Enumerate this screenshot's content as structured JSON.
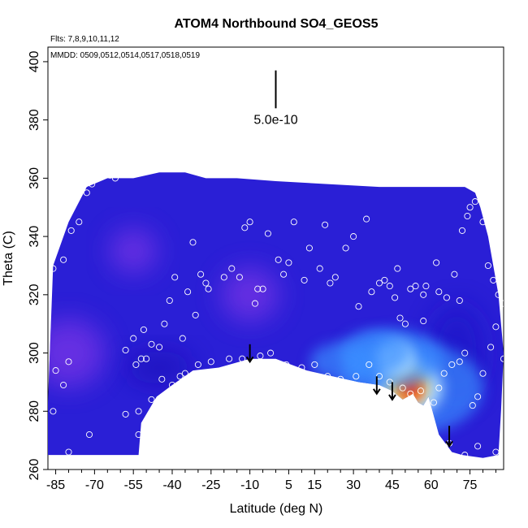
{
  "chart_data": {
    "type": "heatmap",
    "title": "ATOM4 Northbound SO4_GEOS5",
    "xlabel": "Latitude (deg N)",
    "ylabel": "Theta (C)",
    "annotations": {
      "flights": "Flts: 7,8,9,10,11,12",
      "dates": "MMDD: 0509,0512,0514,0517,0518,0519",
      "scale_bar": "5.0e-10"
    },
    "xlim": [
      -88,
      88
    ],
    "ylim": [
      260,
      405
    ],
    "x_ticks": [
      -85,
      -70,
      -55,
      -40,
      -25,
      -10,
      5,
      15,
      30,
      45,
      60,
      75
    ],
    "x_tick_labels": [
      "-85",
      "-70",
      "-55",
      "-40",
      "-25",
      "-10",
      "5",
      "15",
      "30",
      "45",
      "60",
      "75"
    ],
    "y_ticks": [
      260,
      280,
      300,
      320,
      340,
      360,
      380,
      400
    ],
    "y_tick_labels": [
      "260",
      "280",
      "300",
      "320",
      "340",
      "360",
      "380",
      "400"
    ],
    "colors": {
      "background_field": "#2a1fd6",
      "high_value": "#e8160c",
      "mid_value": "#ffd24a",
      "low_value": "#3a8dff",
      "purple_region": "#7a36e6",
      "markers": "#ffffff",
      "arrows": "#000000"
    },
    "field_outline": [
      [
        -88,
        283
      ],
      [
        -86,
        330
      ],
      [
        -80,
        345
      ],
      [
        -73,
        357
      ],
      [
        -65,
        360
      ],
      [
        -55,
        360
      ],
      [
        -45,
        362
      ],
      [
        -35,
        362
      ],
      [
        -27,
        360
      ],
      [
        -15,
        360
      ],
      [
        0,
        359
      ],
      [
        20,
        358
      ],
      [
        40,
        357
      ],
      [
        55,
        357
      ],
      [
        65,
        357
      ],
      [
        73,
        357
      ],
      [
        77,
        355
      ],
      [
        79,
        350
      ],
      [
        82,
        340
      ],
      [
        86,
        320
      ],
      [
        88,
        300
      ],
      [
        87,
        280
      ],
      [
        86,
        265
      ],
      [
        80,
        264
      ],
      [
        72,
        265
      ],
      [
        68,
        266
      ],
      [
        63,
        272
      ],
      [
        59,
        285
      ],
      [
        57,
        282
      ],
      [
        55,
        283
      ],
      [
        53,
        286
      ],
      [
        49,
        284
      ],
      [
        45,
        287
      ],
      [
        40,
        289
      ],
      [
        32,
        290
      ],
      [
        22,
        292
      ],
      [
        12,
        294
      ],
      [
        0,
        298
      ],
      [
        -10,
        298
      ],
      [
        -22,
        295
      ],
      [
        -32,
        294
      ],
      [
        -40,
        289
      ],
      [
        -46,
        285
      ],
      [
        -52,
        276
      ],
      [
        -53,
        265
      ],
      [
        -60,
        265
      ],
      [
        -70,
        265
      ],
      [
        -88,
        265
      ]
    ],
    "hotspots": [
      {
        "lat": 52,
        "theta": 288,
        "strength": 1.0
      },
      {
        "lat": 46,
        "theta": 298,
        "strength": 0.55
      },
      {
        "lat": 38,
        "theta": 300,
        "strength": 0.35
      },
      {
        "lat": 25,
        "theta": 297,
        "strength": 0.25
      }
    ],
    "purple_zones": [
      {
        "lat": -80,
        "theta": 300,
        "r": 28
      },
      {
        "lat": -10,
        "theta": 320,
        "r": 22
      },
      {
        "lat": -55,
        "theta": 335,
        "r": 18
      }
    ],
    "observation_points": [
      [
        -85,
        294
      ],
      [
        -82,
        289
      ],
      [
        -86,
        280
      ],
      [
        -80,
        297
      ],
      [
        -86,
        329
      ],
      [
        -82,
        332
      ],
      [
        -79,
        342
      ],
      [
        -76,
        345
      ],
      [
        -73,
        355
      ],
      [
        -71,
        358
      ],
      [
        -64,
        361
      ],
      [
        -62,
        360
      ],
      [
        -58,
        301
      ],
      [
        -55,
        305
      ],
      [
        -54,
        296
      ],
      [
        -52,
        298
      ],
      [
        -50,
        298
      ],
      [
        -48,
        303
      ],
      [
        -51,
        308
      ],
      [
        -45,
        302
      ],
      [
        -43,
        310
      ],
      [
        -41,
        318
      ],
      [
        -40,
        289
      ],
      [
        -37,
        292
      ],
      [
        -39,
        326
      ],
      [
        -36,
        305
      ],
      [
        -31,
        313
      ],
      [
        -32,
        338
      ],
      [
        -34,
        321
      ],
      [
        -29,
        327
      ],
      [
        -27,
        324
      ],
      [
        -26,
        322
      ],
      [
        -20,
        326
      ],
      [
        -17,
        329
      ],
      [
        -14,
        326
      ],
      [
        -12,
        343
      ],
      [
        -10,
        345
      ],
      [
        -8,
        317
      ],
      [
        -7,
        322
      ],
      [
        -5,
        322
      ],
      [
        -3,
        341
      ],
      [
        1,
        332
      ],
      [
        3,
        327
      ],
      [
        5,
        331
      ],
      [
        7,
        345
      ],
      [
        11,
        325
      ],
      [
        13,
        336
      ],
      [
        17,
        329
      ],
      [
        19,
        344
      ],
      [
        21,
        324
      ],
      [
        23,
        326
      ],
      [
        27,
        336
      ],
      [
        30,
        340
      ],
      [
        32,
        316
      ],
      [
        35,
        346
      ],
      [
        37,
        321
      ],
      [
        40,
        324
      ],
      [
        42,
        325
      ],
      [
        44,
        323
      ],
      [
        46,
        319
      ],
      [
        47,
        329
      ],
      [
        48,
        312
      ],
      [
        50,
        310
      ],
      [
        52,
        322
      ],
      [
        54,
        323
      ],
      [
        57,
        320
      ],
      [
        57,
        311
      ],
      [
        58,
        323
      ],
      [
        62,
        331
      ],
      [
        63,
        321
      ],
      [
        66,
        319
      ],
      [
        69,
        327
      ],
      [
        71,
        318
      ],
      [
        72,
        342
      ],
      [
        74,
        347
      ],
      [
        75,
        350
      ],
      [
        77,
        352
      ],
      [
        79,
        354
      ],
      [
        80,
        345
      ],
      [
        82,
        330
      ],
      [
        84,
        325
      ],
      [
        86,
        320
      ],
      [
        88,
        317
      ],
      [
        85,
        309
      ],
      [
        83,
        302
      ],
      [
        80,
        293
      ],
      [
        78,
        285
      ],
      [
        76,
        282
      ],
      [
        73,
        300
      ],
      [
        71,
        297
      ],
      [
        68,
        296
      ],
      [
        65,
        293
      ],
      [
        63,
        288
      ],
      [
        61,
        283
      ],
      [
        59,
        280
      ],
      [
        56,
        287
      ],
      [
        52,
        286
      ],
      [
        49,
        288
      ],
      [
        44,
        290
      ],
      [
        40,
        292
      ],
      [
        36,
        296
      ],
      [
        31,
        292
      ],
      [
        25,
        291
      ],
      [
        20,
        292
      ],
      [
        15,
        296
      ],
      [
        10,
        295
      ],
      [
        4,
        296
      ],
      [
        -2,
        300
      ],
      [
        -6,
        299
      ],
      [
        -13,
        298
      ],
      [
        -18,
        298
      ],
      [
        -25,
        297
      ],
      [
        -30,
        296
      ],
      [
        -35,
        293
      ],
      [
        -44,
        291
      ],
      [
        -48,
        284
      ],
      [
        -53,
        280
      ],
      [
        -58,
        279
      ],
      [
        -53,
        272
      ],
      [
        -47,
        279
      ],
      [
        -43,
        276
      ],
      [
        -40,
        281
      ],
      [
        -72,
        272
      ],
      [
        -80,
        266
      ],
      [
        60,
        267
      ],
      [
        63,
        265
      ],
      [
        67,
        269
      ],
      [
        73,
        265
      ],
      [
        78,
        268
      ],
      [
        85,
        266
      ],
      [
        88,
        298
      ]
    ],
    "down_arrows": [
      {
        "lat": -10,
        "theta_top": 303,
        "theta_bottom": 297
      },
      {
        "lat": 39,
        "theta_top": 292,
        "theta_bottom": 286
      },
      {
        "lat": 45,
        "theta_top": 290,
        "theta_bottom": 284
      },
      {
        "lat": 67,
        "theta_top": 275,
        "theta_bottom": 268
      }
    ],
    "scale_bar_line": {
      "lat": 0,
      "theta_top": 397,
      "theta_bottom": 384
    }
  }
}
